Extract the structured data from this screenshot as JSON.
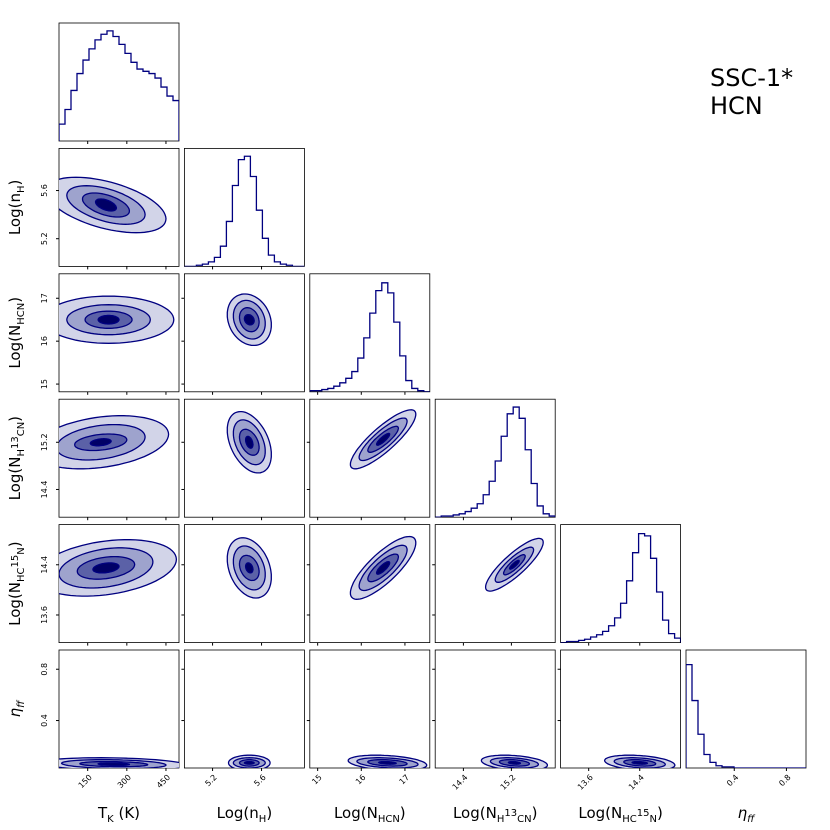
{
  "chart_data": {
    "type": "corner",
    "annotations": [
      "SSC-1*",
      "HCN"
    ],
    "fill_colors": [
      "#d2d4e8",
      "#9ea3cd",
      "#5b61a7",
      "#000066"
    ],
    "line_color": "#000080",
    "parameters": [
      {
        "label": [
          {
            "text": "T"
          },
          {
            "text": "K",
            "sub": true
          },
          {
            "text": " (K)"
          }
        ],
        "lim": [
          40,
          500
        ],
        "ticks": [
          150,
          300,
          450
        ],
        "hist": {
          "bins": [
            40,
            63,
            86,
            109,
            132,
            155,
            178,
            201,
            224,
            247,
            270,
            293,
            316,
            339,
            362,
            385,
            408,
            431,
            454,
            477,
            500
          ],
          "counts": [
            15,
            28,
            45,
            60,
            72,
            82,
            90,
            95,
            98,
            93,
            86,
            78,
            70,
            64,
            62,
            60,
            56,
            48,
            40,
            36
          ],
          "ylim": [
            0,
            105
          ]
        }
      },
      {
        "label": [
          {
            "text": "Log(n"
          },
          {
            "text": "H",
            "sub": true
          },
          {
            "text": ")"
          }
        ],
        "lim": [
          4.97,
          5.95
        ],
        "ticks": [
          5.2,
          5.6
        ],
        "hist": {
          "bins": [
            4.97,
            5.019,
            5.068,
            5.117,
            5.166,
            5.215,
            5.264,
            5.313,
            5.362,
            5.411,
            5.46,
            5.509,
            5.558,
            5.607,
            5.656,
            5.705,
            5.754,
            5.803,
            5.852,
            5.901,
            5.95
          ],
          "counts": [
            0,
            0,
            1,
            2,
            4,
            8,
            18,
            40,
            72,
            95,
            98,
            80,
            50,
            25,
            10,
            4,
            2,
            1,
            0,
            0
          ],
          "ylim": [
            0,
            105
          ]
        }
      },
      {
        "label": [
          {
            "text": "Log(N"
          },
          {
            "text": "HCN",
            "sub": true
          },
          {
            "text": ")"
          }
        ],
        "lim": [
          14.82,
          17.57
        ],
        "ticks": [
          15,
          16,
          17
        ],
        "hist": {
          "bins": [
            14.82,
            14.9575,
            15.095,
            15.2325,
            15.37,
            15.5075,
            15.645,
            15.7825,
            15.92,
            16.0575,
            16.195,
            16.3325,
            16.47,
            16.6075,
            16.745,
            16.8825,
            17.02,
            17.1575,
            17.295,
            17.4325,
            17.57
          ],
          "counts": [
            1,
            1,
            2,
            3,
            5,
            8,
            12,
            18,
            30,
            48,
            70,
            90,
            97,
            88,
            62,
            32,
            10,
            3,
            1,
            0
          ],
          "ylim": [
            0,
            105
          ]
        }
      },
      {
        "label": [
          {
            "text": "Log(N"
          },
          {
            "text": "H",
            "sub": true
          },
          {
            "text": "13",
            "sup": true
          },
          {
            "text": "CN",
            "sub": true
          },
          {
            "text": ")"
          }
        ],
        "lim": [
          13.93,
          15.93
        ],
        "ticks": [
          14.4,
          15.2
        ],
        "hist": {
          "bins": [
            13.93,
            14.03,
            14.13,
            14.23,
            14.33,
            14.43,
            14.53,
            14.63,
            14.73,
            14.83,
            14.93,
            15.03,
            15.13,
            15.23,
            15.33,
            15.43,
            15.53,
            15.63,
            15.73,
            15.83,
            15.93
          ],
          "counts": [
            0,
            1,
            1,
            2,
            3,
            5,
            8,
            12,
            20,
            32,
            50,
            72,
            92,
            98,
            88,
            60,
            30,
            10,
            3,
            1
          ],
          "ylim": [
            0,
            105
          ]
        }
      },
      {
        "label": [
          {
            "text": "Log(N"
          },
          {
            "text": "HC",
            "sub": true
          },
          {
            "text": "15",
            "sup": true
          },
          {
            "text": "N",
            "sub": true
          },
          {
            "text": ")"
          }
        ],
        "lim": [
          13.16,
          15.04
        ],
        "ticks": [
          13.6,
          14.4
        ],
        "hist": {
          "bins": [
            13.16,
            13.254,
            13.348,
            13.442,
            13.536,
            13.63,
            13.724,
            13.818,
            13.912,
            14.006,
            14.1,
            14.194,
            14.288,
            14.382,
            14.476,
            14.57,
            14.664,
            14.758,
            14.852,
            14.946,
            15.04
          ],
          "counts": [
            0,
            1,
            1,
            2,
            3,
            5,
            7,
            10,
            15,
            22,
            35,
            55,
            80,
            97,
            95,
            75,
            45,
            20,
            8,
            4
          ],
          "ylim": [
            0,
            105
          ]
        }
      },
      {
        "label": [
          {
            "text": "η",
            "italic": true
          },
          {
            "text": "ff",
            "sub": true,
            "italic": true
          }
        ],
        "lim": [
          0.03,
          0.95
        ],
        "ticks": [
          0.4,
          0.8
        ],
        "hist": {
          "bins": [
            0.03,
            0.076,
            0.122,
            0.168,
            0.214,
            0.26,
            0.306,
            0.352,
            0.398,
            0.444,
            0.49,
            0.536,
            0.582,
            0.628,
            0.674,
            0.72,
            0.766,
            0.812,
            0.858,
            0.904,
            0.95
          ],
          "counts": [
            92,
            60,
            30,
            12,
            5,
            2,
            1,
            1,
            0,
            0,
            0,
            0,
            0,
            0,
            0,
            0,
            0,
            0,
            0,
            0
          ],
          "ylim": [
            0,
            105
          ]
        }
      }
    ],
    "contours": [
      {
        "x": 0,
        "y": 1,
        "center": [
          220,
          5.48
        ],
        "rho": -0.5,
        "levels": [
          [
            40,
            0.05
          ],
          [
            90,
            0.1
          ],
          [
            150,
            0.16
          ],
          [
            230,
            0.23
          ]
        ]
      },
      {
        "x": 0,
        "y": 2,
        "center": [
          230,
          16.5
        ],
        "rho": 0,
        "levels": [
          [
            40,
            0.1
          ],
          [
            90,
            0.2
          ],
          [
            160,
            0.35
          ],
          [
            250,
            0.55
          ]
        ]
      },
      {
        "x": 1,
        "y": 2,
        "center": [
          5.5,
          16.5
        ],
        "rho": -0.2,
        "levels": [
          [
            0.04,
            0.12
          ],
          [
            0.08,
            0.28
          ],
          [
            0.13,
            0.45
          ],
          [
            0.18,
            0.6
          ]
        ]
      },
      {
        "x": 0,
        "y": 3,
        "center": [
          200,
          15.2
        ],
        "rho": 0.3,
        "levels": [
          [
            40,
            0.06
          ],
          [
            100,
            0.14
          ],
          [
            170,
            0.3
          ],
          [
            260,
            0.45
          ]
        ]
      },
      {
        "x": 1,
        "y": 3,
        "center": [
          5.5,
          15.2
        ],
        "rho": -0.4,
        "levels": [
          [
            0.03,
            0.1
          ],
          [
            0.08,
            0.22
          ],
          [
            0.13,
            0.38
          ],
          [
            0.18,
            0.52
          ]
        ]
      },
      {
        "x": 2,
        "y": 3,
        "center": [
          16.5,
          15.25
        ],
        "rho": 0.85,
        "levels": [
          [
            0.15,
            0.1
          ],
          [
            0.35,
            0.22
          ],
          [
            0.55,
            0.36
          ],
          [
            0.75,
            0.5
          ]
        ]
      },
      {
        "x": 0,
        "y": 4,
        "center": [
          220,
          14.35
        ],
        "rho": 0.3,
        "levels": [
          [
            50,
            0.08
          ],
          [
            110,
            0.18
          ],
          [
            180,
            0.32
          ],
          [
            270,
            0.45
          ]
        ]
      },
      {
        "x": 1,
        "y": 4,
        "center": [
          5.5,
          14.35
        ],
        "rho": -0.3,
        "levels": [
          [
            0.03,
            0.08
          ],
          [
            0.08,
            0.2
          ],
          [
            0.13,
            0.35
          ],
          [
            0.18,
            0.48
          ]
        ]
      },
      {
        "x": 2,
        "y": 4,
        "center": [
          16.5,
          14.35
        ],
        "rho": 0.8,
        "levels": [
          [
            0.15,
            0.1
          ],
          [
            0.35,
            0.22
          ],
          [
            0.55,
            0.36
          ],
          [
            0.75,
            0.5
          ]
        ]
      },
      {
        "x": 3,
        "y": 4,
        "center": [
          15.25,
          14.4
        ],
        "rho": 0.85,
        "levels": [
          [
            0.08,
            0.07
          ],
          [
            0.18,
            0.16
          ],
          [
            0.32,
            0.28
          ],
          [
            0.48,
            0.42
          ]
        ]
      },
      {
        "x": 0,
        "y": 5,
        "center": [
          250,
          0.06
        ],
        "rho": -0.2,
        "levels": [
          [
            60,
            0.01
          ],
          [
            130,
            0.02
          ],
          [
            200,
            0.035
          ],
          [
            280,
            0.05
          ]
        ]
      },
      {
        "x": 1,
        "y": 5,
        "center": [
          5.5,
          0.07
        ],
        "rho": 0,
        "levels": [
          [
            0.04,
            0.01
          ],
          [
            0.08,
            0.025
          ],
          [
            0.13,
            0.04
          ],
          [
            0.17,
            0.06
          ]
        ]
      },
      {
        "x": 2,
        "y": 5,
        "center": [
          16.6,
          0.07
        ],
        "rho": -0.3,
        "levels": [
          [
            0.2,
            0.01
          ],
          [
            0.45,
            0.025
          ],
          [
            0.7,
            0.04
          ],
          [
            0.9,
            0.06
          ]
        ]
      },
      {
        "x": 3,
        "y": 5,
        "center": [
          15.25,
          0.07
        ],
        "rho": -0.3,
        "levels": [
          [
            0.1,
            0.01
          ],
          [
            0.25,
            0.025
          ],
          [
            0.4,
            0.04
          ],
          [
            0.55,
            0.06
          ]
        ]
      },
      {
        "x": 4,
        "y": 5,
        "center": [
          14.4,
          0.07
        ],
        "rho": -0.3,
        "levels": [
          [
            0.12,
            0.01
          ],
          [
            0.25,
            0.025
          ],
          [
            0.4,
            0.04
          ],
          [
            0.55,
            0.06
          ]
        ]
      }
    ]
  }
}
